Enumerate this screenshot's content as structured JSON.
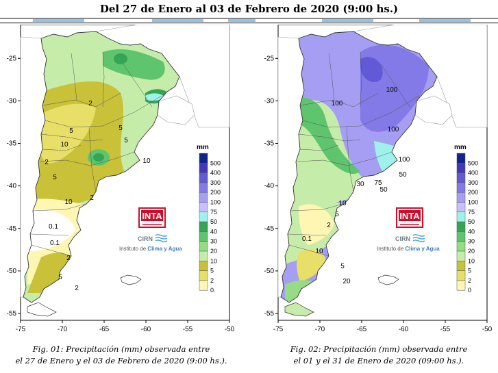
{
  "header": {
    "title": "Del 27 de Enero al 03 de Febrero de 2020 (9:00 hs.)"
  },
  "colors": {
    "tab_accent": "#8fc4e8",
    "legend_scale": [
      "#ffffff",
      "#fff6b4",
      "#e8df69",
      "#c9c137",
      "#c6ecaa",
      "#95dc84",
      "#5fc46e",
      "#36a456",
      "#9ff2ec",
      "#c9bfff",
      "#a59ef3",
      "#8379e7",
      "#6159d6",
      "#4338b8",
      "#10258c"
    ]
  },
  "legend": {
    "unit": "mm",
    "labels": [
      "500",
      "400",
      "300",
      "200",
      "100",
      "75",
      "50",
      "40",
      "30",
      "20",
      "10",
      "5",
      "2"
    ]
  },
  "axes": {
    "x_ticks": [
      "-75",
      "-70",
      "-65",
      "-60",
      "-55",
      "-50"
    ],
    "y_ticks": [
      "-25",
      "-30",
      "-35",
      "-40",
      "-45",
      "-50",
      "-55"
    ]
  },
  "logo": {
    "brand": "INTA",
    "sub_brand": "CIRN",
    "institute_prefix": "Instituto de ",
    "institute_highlight": "Clima y Agua"
  },
  "maps": [
    {
      "legend_last": "0.",
      "contour_labels": [
        "2",
        "5",
        "10",
        "5",
        "2",
        "5",
        "10",
        "5",
        "10",
        "2",
        "0.1",
        "0.1",
        "2",
        "5",
        "2"
      ],
      "caption_line1": "Fig. 01: Precipitación (mm) observada entre",
      "caption_line2": "el 27 de Enero y el 03 de Febrero de 2020 (9:00 hs.)."
    },
    {
      "legend_last": "0",
      "contour_labels": [
        "100",
        "100",
        "100",
        "100",
        "50",
        "75",
        "50",
        "30",
        "10",
        "5",
        "2",
        "0.1",
        "10",
        "5",
        "20"
      ],
      "caption_line1": "Fig. 02: Precipitación (mm) observada entre",
      "caption_line2": "el 01 y el 31 de Enero de 2020 (09:00 hs.)."
    }
  ]
}
